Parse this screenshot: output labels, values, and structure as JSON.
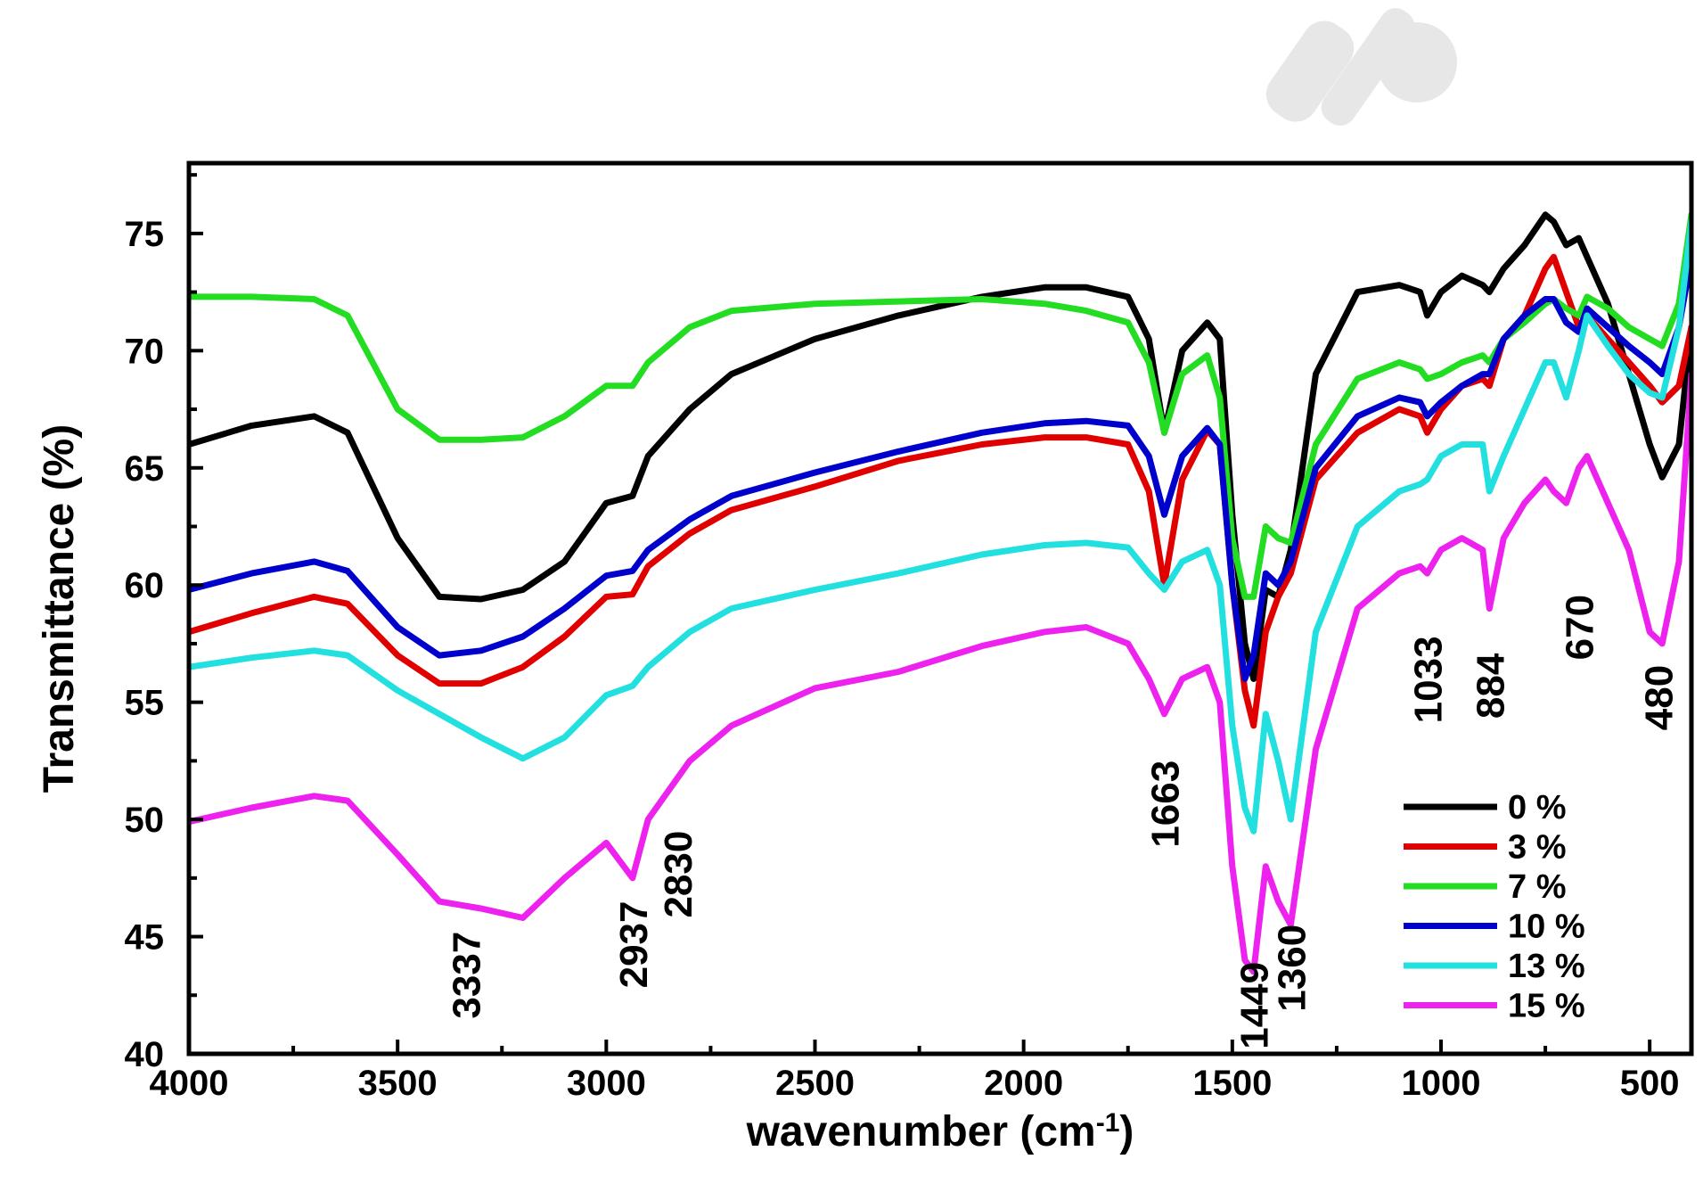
{
  "chart_data": {
    "type": "line",
    "xlabel": "wavenumber (cm",
    "xlabel_sup": "-1",
    "xlabel_close": ")",
    "ylabel": "Transmittance (%)",
    "xlim": [
      4000,
      400
    ],
    "ylim": [
      40,
      78
    ],
    "x_ticks": [
      4000,
      3500,
      3000,
      2500,
      2000,
      1500,
      1000,
      500
    ],
    "y_ticks": [
      40,
      45,
      50,
      55,
      60,
      65,
      70,
      75
    ],
    "grid": false,
    "legend_position": "lower-right",
    "peak_labels": [
      "3337",
      "2937",
      "2830",
      "1663",
      "1449",
      "1360",
      "1033",
      "884",
      "670",
      "480"
    ],
    "peak_positions": [
      3337,
      2937,
      2830,
      1663,
      1449,
      1360,
      1033,
      884,
      670,
      480
    ],
    "series": [
      {
        "name": "0 %",
        "color": "#000000",
        "x": [
          4000,
          3850,
          3700,
          3620,
          3500,
          3400,
          3300,
          3200,
          3100,
          3000,
          2937,
          2900,
          2800,
          2700,
          2500,
          2300,
          2100,
          1950,
          1850,
          1750,
          1700,
          1663,
          1620,
          1560,
          1530,
          1500,
          1470,
          1449,
          1420,
          1390,
          1360,
          1300,
          1200,
          1100,
          1050,
          1033,
          1000,
          950,
          900,
          884,
          850,
          800,
          750,
          730,
          700,
          670,
          650,
          600,
          550,
          500,
          470,
          430,
          400
        ],
        "y": [
          66,
          66.8,
          67.2,
          66.5,
          62,
          59.5,
          59.4,
          59.8,
          61,
          63.5,
          63.8,
          65.5,
          67.5,
          69,
          70.5,
          71.5,
          72.3,
          72.7,
          72.7,
          72.3,
          70.5,
          66.5,
          70,
          71.2,
          70.5,
          63,
          57.5,
          56,
          59.8,
          59.5,
          61.5,
          69,
          72.5,
          72.8,
          72.5,
          71.5,
          72.5,
          73.2,
          72.8,
          72.5,
          73.5,
          74.5,
          75.8,
          75.5,
          74.5,
          74.8,
          74,
          72,
          69,
          66,
          64.6,
          66,
          71
        ]
      },
      {
        "name": "3 %",
        "color": "#e00000",
        "x": [
          4000,
          3850,
          3700,
          3620,
          3500,
          3400,
          3300,
          3200,
          3100,
          3000,
          2937,
          2900,
          2800,
          2700,
          2500,
          2300,
          2100,
          1950,
          1850,
          1750,
          1700,
          1663,
          1620,
          1560,
          1530,
          1500,
          1470,
          1449,
          1420,
          1390,
          1360,
          1300,
          1200,
          1100,
          1050,
          1033,
          1000,
          950,
          900,
          884,
          850,
          800,
          750,
          730,
          700,
          670,
          650,
          600,
          550,
          500,
          470,
          430,
          400
        ],
        "y": [
          58,
          58.8,
          59.5,
          59.2,
          57,
          55.8,
          55.8,
          56.5,
          57.8,
          59.5,
          59.6,
          60.8,
          62.2,
          63.2,
          64.2,
          65.3,
          66,
          66.3,
          66.3,
          66,
          64,
          60,
          64.5,
          66.6,
          66,
          60,
          55.5,
          54,
          58,
          59.5,
          60.5,
          64.5,
          66.5,
          67.5,
          67.2,
          66.5,
          67.5,
          68.5,
          68.8,
          68.5,
          70.5,
          71.5,
          73.5,
          74,
          72.5,
          71,
          71.5,
          70.5,
          69.5,
          68.5,
          67.8,
          68.5,
          71
        ]
      },
      {
        "name": "7 %",
        "color": "#22dd22",
        "x": [
          4000,
          3850,
          3700,
          3620,
          3500,
          3400,
          3300,
          3200,
          3100,
          3000,
          2937,
          2900,
          2800,
          2700,
          2500,
          2300,
          2100,
          1950,
          1850,
          1750,
          1700,
          1663,
          1620,
          1560,
          1530,
          1500,
          1470,
          1449,
          1420,
          1390,
          1360,
          1300,
          1200,
          1100,
          1050,
          1033,
          1000,
          950,
          900,
          884,
          850,
          800,
          750,
          730,
          700,
          670,
          650,
          600,
          550,
          500,
          470,
          430,
          400
        ],
        "y": [
          72.3,
          72.3,
          72.2,
          71.5,
          67.5,
          66.2,
          66.2,
          66.3,
          67.2,
          68.5,
          68.5,
          69.5,
          71,
          71.7,
          72,
          72.1,
          72.2,
          72,
          71.7,
          71.2,
          69.5,
          66.5,
          69,
          69.8,
          68,
          62,
          59.5,
          59.5,
          62.5,
          62,
          61.8,
          66,
          68.8,
          69.5,
          69.2,
          68.8,
          69,
          69.5,
          69.8,
          69.5,
          70.5,
          71.2,
          72,
          72.2,
          71.8,
          71.5,
          72.3,
          71.8,
          71,
          70.5,
          70.2,
          72,
          75.8
        ]
      },
      {
        "name": "10 %",
        "color": "#0000cc",
        "x": [
          4000,
          3850,
          3700,
          3620,
          3500,
          3400,
          3300,
          3200,
          3100,
          3000,
          2937,
          2900,
          2800,
          2700,
          2500,
          2300,
          2100,
          1950,
          1850,
          1750,
          1700,
          1663,
          1620,
          1560,
          1530,
          1500,
          1470,
          1449,
          1420,
          1390,
          1360,
          1300,
          1200,
          1100,
          1050,
          1033,
          1000,
          950,
          900,
          884,
          850,
          800,
          750,
          730,
          700,
          670,
          650,
          600,
          550,
          500,
          470,
          430,
          400
        ],
        "y": [
          59.8,
          60.5,
          61,
          60.6,
          58.2,
          57,
          57.2,
          57.8,
          59,
          60.4,
          60.6,
          61.5,
          62.8,
          63.8,
          64.8,
          65.7,
          66.5,
          66.9,
          67,
          66.8,
          65.5,
          63,
          65.5,
          66.7,
          66,
          60,
          56,
          57,
          60.5,
          60,
          61,
          65,
          67.2,
          68,
          67.8,
          67.2,
          67.8,
          68.5,
          69,
          69,
          70.5,
          71.5,
          72.2,
          72.2,
          71.2,
          70.8,
          71.8,
          71,
          70.2,
          69.5,
          69,
          71,
          74
        ]
      },
      {
        "name": "13 %",
        "color": "#22e0e0",
        "x": [
          4000,
          3850,
          3700,
          3620,
          3500,
          3400,
          3300,
          3200,
          3100,
          3000,
          2937,
          2900,
          2800,
          2700,
          2500,
          2300,
          2100,
          1950,
          1850,
          1750,
          1700,
          1663,
          1620,
          1560,
          1530,
          1500,
          1470,
          1449,
          1420,
          1390,
          1360,
          1300,
          1200,
          1100,
          1050,
          1033,
          1000,
          950,
          900,
          884,
          850,
          800,
          750,
          730,
          700,
          670,
          650,
          600,
          550,
          500,
          470,
          430,
          400
        ],
        "y": [
          56.5,
          56.9,
          57.2,
          57,
          55.5,
          54.5,
          53.5,
          52.6,
          53.5,
          55.3,
          55.7,
          56.5,
          58,
          59,
          59.8,
          60.5,
          61.3,
          61.7,
          61.8,
          61.6,
          60.5,
          59.8,
          61,
          61.5,
          60,
          54,
          50.5,
          49.5,
          54.5,
          52.5,
          50,
          58,
          62.5,
          64,
          64.3,
          64.5,
          65.5,
          66,
          66,
          64,
          65.5,
          67.5,
          69.5,
          69.5,
          68,
          70,
          71.5,
          70.2,
          69,
          68.2,
          68,
          71,
          75.5
        ]
      },
      {
        "name": "15 %",
        "color": "#ee22ee",
        "x": [
          4000,
          3850,
          3700,
          3620,
          3500,
          3400,
          3300,
          3200,
          3100,
          3000,
          2937,
          2900,
          2800,
          2700,
          2500,
          2300,
          2100,
          1950,
          1850,
          1750,
          1700,
          1663,
          1620,
          1560,
          1530,
          1500,
          1470,
          1449,
          1420,
          1390,
          1360,
          1300,
          1200,
          1100,
          1050,
          1033,
          1000,
          950,
          900,
          884,
          850,
          800,
          750,
          730,
          700,
          670,
          650,
          600,
          550,
          500,
          470,
          430,
          400
        ],
        "y": [
          49.9,
          50.5,
          51,
          50.8,
          48.5,
          46.5,
          46.2,
          45.8,
          47.5,
          49,
          47.5,
          50,
          52.5,
          54,
          55.6,
          56.3,
          57.4,
          58,
          58.2,
          57.5,
          56,
          54.5,
          56,
          56.5,
          55,
          48,
          44,
          43.5,
          48,
          46.5,
          45.5,
          53,
          59,
          60.5,
          60.8,
          60.5,
          61.5,
          62,
          61.5,
          59,
          62,
          63.5,
          64.5,
          64,
          63.5,
          65,
          65.5,
          63.5,
          61.5,
          58,
          57.5,
          61,
          69
        ]
      }
    ]
  }
}
